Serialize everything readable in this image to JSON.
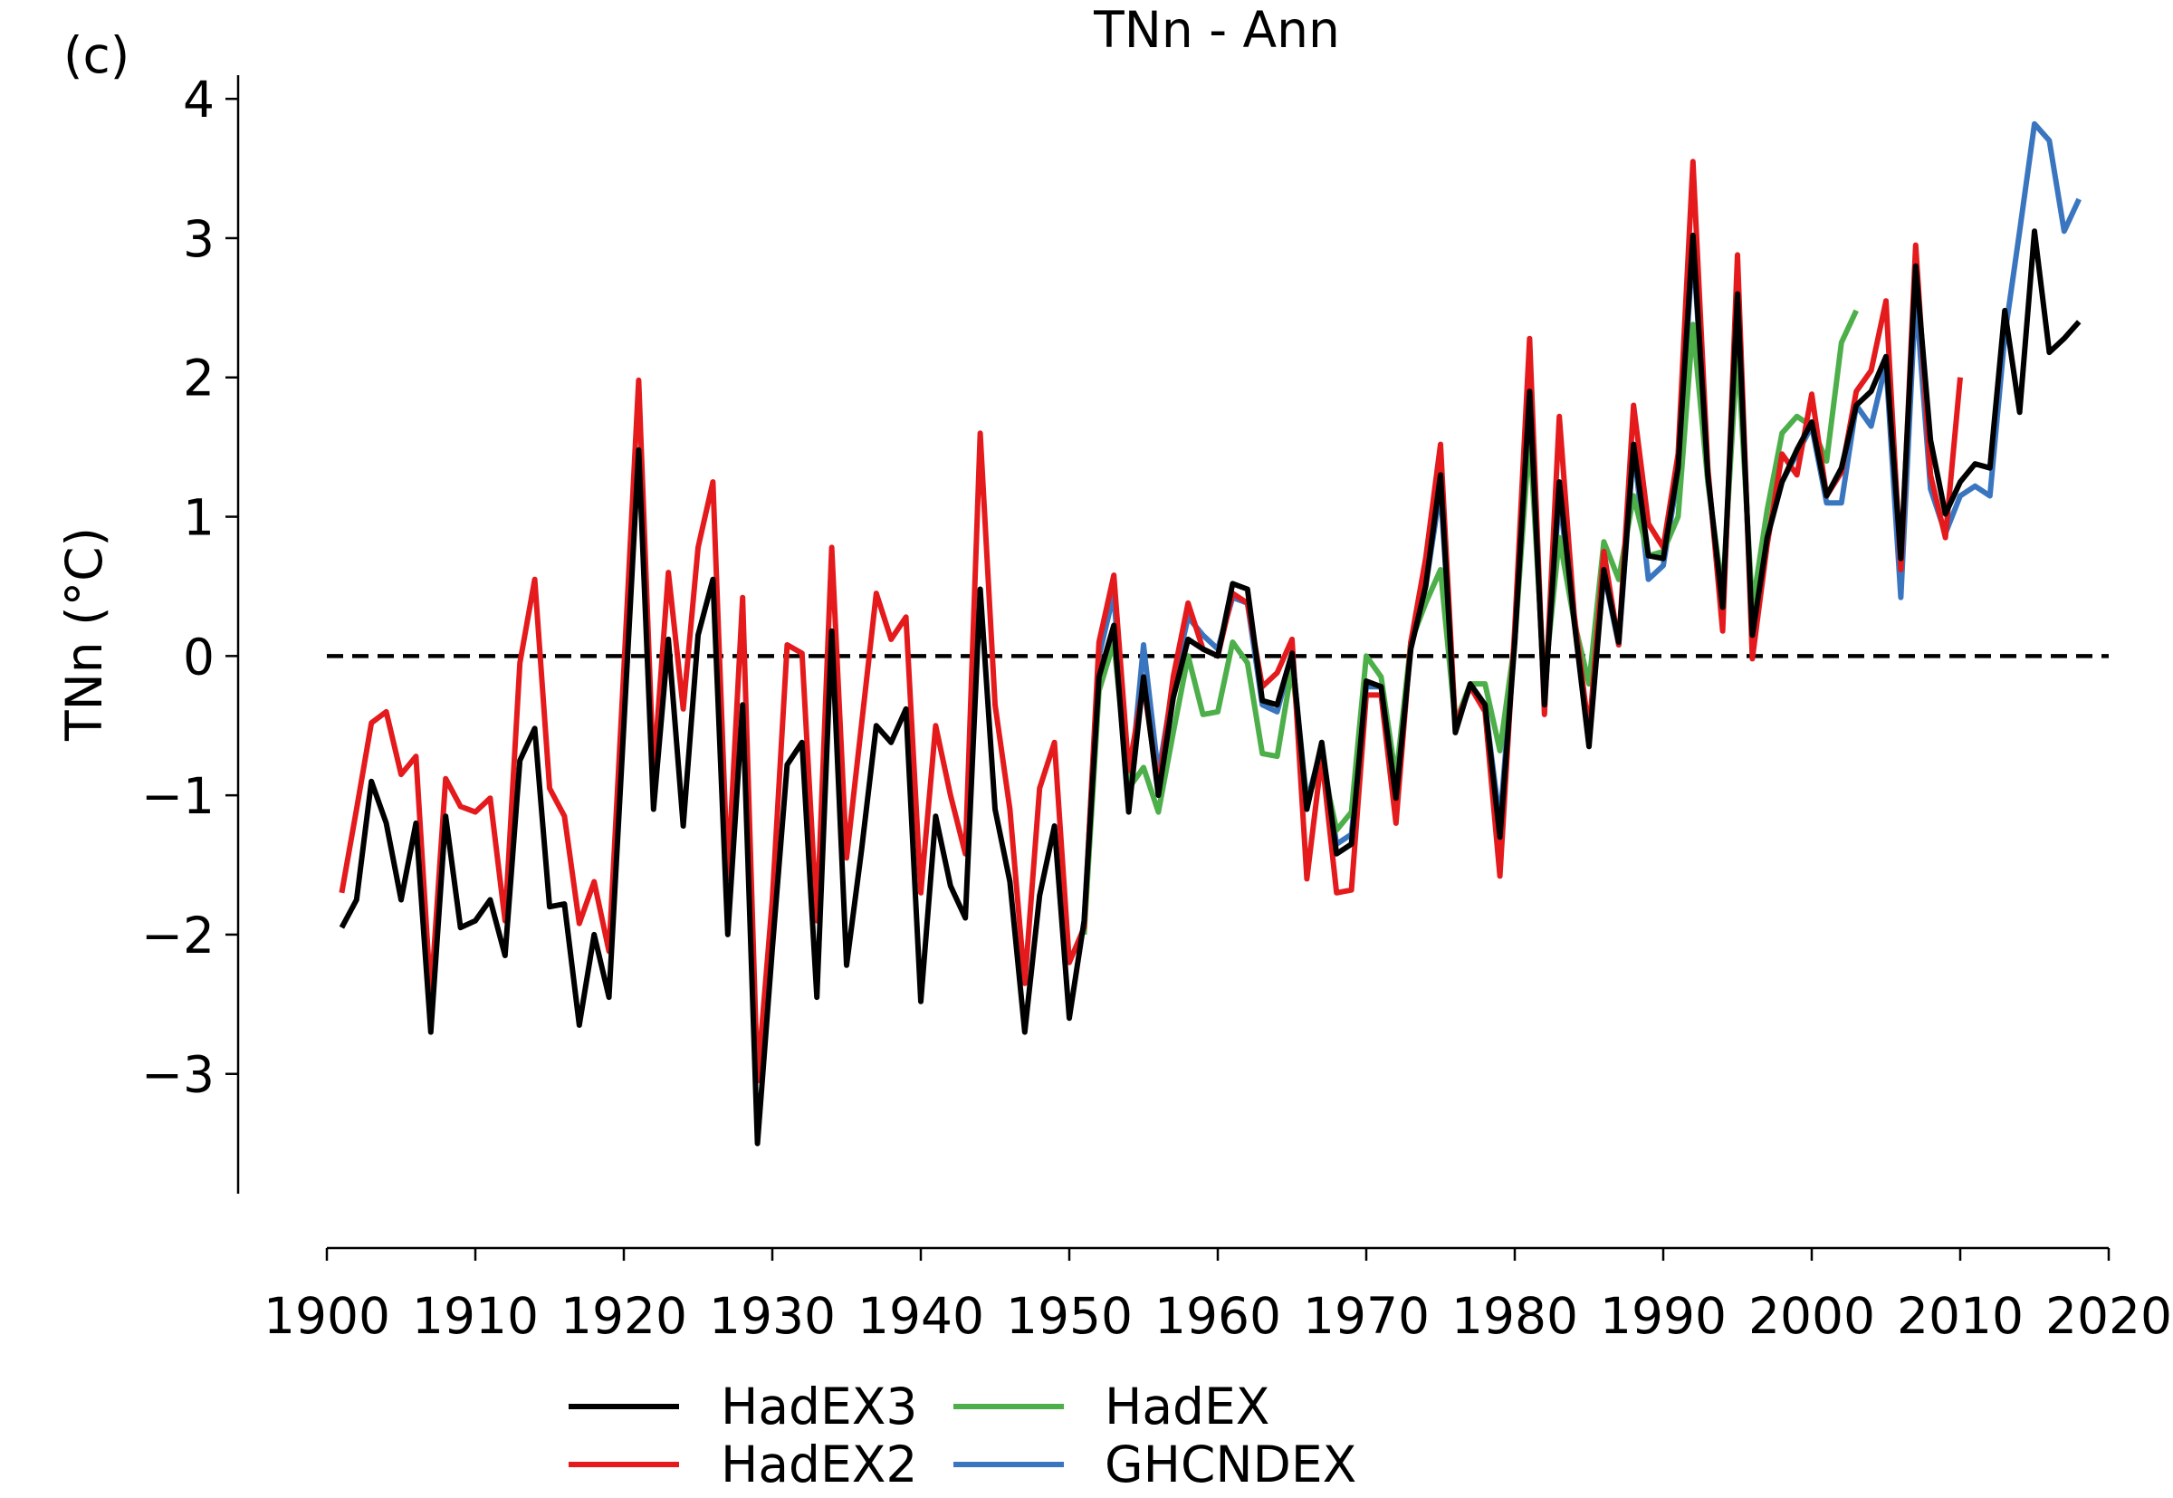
{
  "chart_data": {
    "type": "line",
    "title": "TNn - Ann",
    "panel_label": "(c)",
    "y_label": "TNn (°C)",
    "x": [
      1901,
      1902,
      1903,
      1904,
      1905,
      1906,
      1907,
      1908,
      1909,
      1910,
      1911,
      1912,
      1913,
      1914,
      1915,
      1916,
      1917,
      1918,
      1919,
      1920,
      1921,
      1922,
      1923,
      1924,
      1925,
      1926,
      1927,
      1928,
      1929,
      1930,
      1931,
      1932,
      1933,
      1934,
      1935,
      1936,
      1937,
      1938,
      1939,
      1940,
      1941,
      1942,
      1943,
      1944,
      1945,
      1946,
      1947,
      1948,
      1949,
      1950,
      1951,
      1952,
      1953,
      1954,
      1955,
      1956,
      1957,
      1958,
      1959,
      1960,
      1961,
      1962,
      1963,
      1964,
      1965,
      1966,
      1967,
      1968,
      1969,
      1970,
      1971,
      1972,
      1973,
      1974,
      1975,
      1976,
      1977,
      1978,
      1979,
      1980,
      1981,
      1982,
      1983,
      1984,
      1985,
      1986,
      1987,
      1988,
      1989,
      1990,
      1991,
      1992,
      1993,
      1994,
      1995,
      1996,
      1997,
      1998,
      1999,
      2000,
      2001,
      2002,
      2003,
      2004,
      2005,
      2006,
      2007,
      2008,
      2009,
      2010,
      2011,
      2012,
      2013,
      2014,
      2015,
      2016,
      2017,
      2018
    ],
    "series": [
      {
        "name": "GHCNDEX",
        "color": "#3a76c0",
        "values": [
          null,
          null,
          null,
          null,
          null,
          null,
          null,
          null,
          null,
          null,
          null,
          null,
          null,
          null,
          null,
          null,
          null,
          null,
          null,
          null,
          null,
          null,
          null,
          null,
          null,
          null,
          null,
          null,
          null,
          null,
          null,
          null,
          null,
          null,
          null,
          null,
          null,
          null,
          null,
          null,
          null,
          null,
          null,
          null,
          null,
          null,
          null,
          null,
          null,
          null,
          -1.9,
          0.0,
          0.45,
          -1.05,
          0.08,
          -0.85,
          -0.2,
          0.28,
          0.15,
          0.05,
          0.42,
          0.38,
          -0.35,
          -0.4,
          0.0,
          -1.05,
          -0.65,
          -1.35,
          -1.28,
          -0.22,
          -0.22,
          -1.0,
          0.1,
          0.5,
          1.2,
          -0.48,
          -0.22,
          -0.35,
          -1.2,
          0.15,
          1.8,
          -0.3,
          1.15,
          0.25,
          -0.55,
          0.6,
          0.08,
          1.5,
          0.55,
          0.65,
          1.3,
          2.95,
          1.3,
          0.3,
          2.55,
          0.15,
          0.85,
          1.25,
          1.45,
          1.65,
          1.1,
          1.1,
          1.8,
          1.65,
          2.1,
          0.42,
          2.6,
          1.2,
          0.88,
          1.15,
          1.22,
          1.15,
          2.3,
          3.05,
          3.82,
          3.7,
          3.05,
          3.28
        ]
      },
      {
        "name": "HadEX",
        "color": "#4daf4a",
        "values": [
          null,
          null,
          null,
          null,
          null,
          null,
          null,
          null,
          null,
          null,
          null,
          null,
          null,
          null,
          null,
          null,
          null,
          null,
          null,
          null,
          null,
          null,
          null,
          null,
          null,
          null,
          null,
          null,
          null,
          null,
          null,
          null,
          null,
          null,
          null,
          null,
          null,
          null,
          null,
          null,
          null,
          null,
          null,
          null,
          null,
          null,
          null,
          null,
          null,
          null,
          -2.0,
          -0.25,
          0.1,
          -0.95,
          -0.8,
          -1.12,
          -0.55,
          0.0,
          -0.42,
          -0.4,
          0.1,
          -0.05,
          -0.7,
          -0.72,
          -0.08,
          -1.05,
          -0.75,
          -1.25,
          -1.12,
          0.0,
          -0.15,
          -0.88,
          0.1,
          0.38,
          0.62,
          -0.48,
          -0.2,
          -0.2,
          -0.68,
          0.1,
          1.6,
          -0.2,
          0.85,
          0.25,
          -0.2,
          0.82,
          0.55,
          1.15,
          0.72,
          0.75,
          1.0,
          2.38,
          1.25,
          0.45,
          2.22,
          0.35,
          1.05,
          1.6,
          1.72,
          1.65,
          1.4,
          2.25,
          2.48,
          null,
          null,
          null,
          null,
          null,
          null,
          null,
          null,
          null,
          null,
          null,
          null,
          null,
          null,
          null
        ]
      },
      {
        "name": "HadEX2",
        "color": "#e41a1c",
        "values": [
          -1.7,
          -1.1,
          -0.48,
          -0.4,
          -0.85,
          -0.72,
          -2.45,
          -0.88,
          -1.08,
          -1.12,
          -1.02,
          -1.9,
          -0.05,
          0.55,
          -0.95,
          -1.15,
          -1.92,
          -1.62,
          -2.12,
          -0.1,
          1.98,
          -0.85,
          0.6,
          -0.38,
          0.78,
          1.25,
          -1.6,
          0.42,
          -3.05,
          -1.75,
          0.08,
          0.02,
          -1.9,
          0.78,
          -1.45,
          -0.5,
          0.45,
          0.12,
          0.28,
          -1.7,
          -0.5,
          -1.0,
          -1.42,
          1.6,
          -0.35,
          -1.1,
          -2.35,
          -0.95,
          -0.62,
          -2.2,
          -1.95,
          0.1,
          0.58,
          -0.82,
          -0.2,
          -0.95,
          -0.15,
          0.38,
          0.05,
          0.0,
          0.45,
          0.38,
          -0.22,
          -0.12,
          0.12,
          -1.6,
          -0.72,
          -1.7,
          -1.68,
          -0.28,
          -0.28,
          -1.2,
          0.1,
          0.7,
          1.52,
          -0.5,
          -0.22,
          -0.4,
          -1.58,
          0.2,
          2.28,
          -0.42,
          1.72,
          0.3,
          -0.55,
          0.75,
          0.08,
          1.8,
          0.95,
          0.78,
          1.45,
          3.55,
          1.35,
          0.18,
          2.88,
          -0.02,
          0.8,
          1.45,
          1.3,
          1.88,
          1.15,
          1.32,
          1.9,
          2.05,
          2.55,
          0.62,
          2.95,
          1.3,
          0.85,
          2.0,
          null,
          null,
          null,
          null,
          null,
          null,
          null,
          null
        ]
      },
      {
        "name": "HadEX3",
        "color": "#000000",
        "values": [
          -1.95,
          -1.75,
          -0.9,
          -1.2,
          -1.75,
          -1.2,
          -2.7,
          -1.15,
          -1.95,
          -1.9,
          -1.75,
          -2.15,
          -0.75,
          -0.52,
          -1.8,
          -1.78,
          -2.65,
          -2.0,
          -2.45,
          -0.5,
          1.48,
          -1.1,
          0.12,
          -1.22,
          0.15,
          0.55,
          -2.0,
          -0.35,
          -3.5,
          -2.1,
          -0.78,
          -0.62,
          -2.45,
          0.18,
          -2.22,
          -1.4,
          -0.5,
          -0.62,
          -0.38,
          -2.48,
          -1.15,
          -1.65,
          -1.88,
          0.48,
          -1.1,
          -1.62,
          -2.7,
          -1.72,
          -1.22,
          -2.6,
          -1.9,
          -0.15,
          0.22,
          -1.12,
          -0.15,
          -1.0,
          -0.3,
          0.12,
          0.05,
          0.0,
          0.52,
          0.48,
          -0.32,
          -0.35,
          0.02,
          -1.1,
          -0.62,
          -1.42,
          -1.35,
          -0.18,
          -0.22,
          -1.02,
          0.05,
          0.5,
          1.3,
          -0.55,
          -0.2,
          -0.35,
          -1.3,
          0.1,
          1.9,
          -0.35,
          1.25,
          0.25,
          -0.65,
          0.62,
          0.1,
          1.52,
          0.72,
          0.7,
          1.35,
          3.02,
          1.3,
          0.35,
          2.6,
          0.15,
          0.85,
          1.25,
          1.48,
          1.68,
          1.15,
          1.35,
          1.8,
          1.9,
          2.15,
          0.7,
          2.8,
          1.55,
          1.02,
          1.25,
          1.38,
          1.35,
          2.48,
          1.75,
          3.05,
          2.18,
          2.28,
          2.4
        ]
      }
    ],
    "legend_order": [
      3,
      2,
      1,
      0
    ],
    "legend": "lower center",
    "reference_line": 0,
    "xlim": [
      1900,
      2020
    ],
    "xticks": [
      1900,
      1910,
      1920,
      1930,
      1940,
      1950,
      1960,
      1970,
      1980,
      1990,
      2000,
      2010,
      2020
    ],
    "ylim": [
      -3.86,
      4.17
    ],
    "yticks": [
      {
        "value": -3,
        "label": "−3"
      },
      {
        "value": -2,
        "label": "−2"
      },
      {
        "value": -1,
        "label": "−1"
      },
      0,
      1,
      2,
      3,
      4
    ],
    "grid": false
  }
}
